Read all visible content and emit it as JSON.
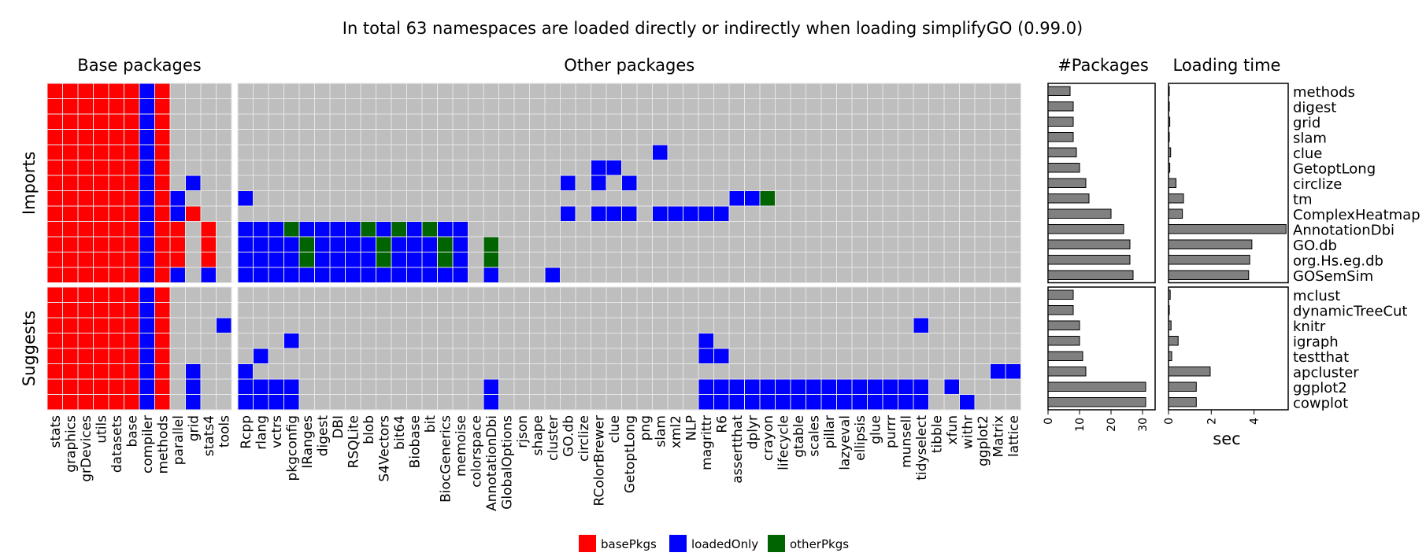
{
  "chart_data": [
    {
      "type": "heatmap",
      "title": "In total 63 namespaces are loaded directly or indirectly when loading simplifyGO (0.99.0)",
      "column_groups": [
        {
          "name": "Base packages",
          "columns": [
            "stats",
            "graphics",
            "grDevices",
            "utils",
            "datasets",
            "base",
            "compiler",
            "methods",
            "parallel",
            "grid",
            "stats4",
            "tools"
          ]
        },
        {
          "name": "Other packages",
          "columns": [
            "Rcpp",
            "rlang",
            "vctrs",
            "pkgconfig",
            "IRanges",
            "digest",
            "DBI",
            "RSQLite",
            "blob",
            "S4Vectors",
            "bit64",
            "Biobase",
            "bit",
            "BiocGenerics",
            "memoise",
            "colorspace",
            "AnnotationDbi",
            "GlobalOptions",
            "rjson",
            "shape",
            "cluster",
            "GO.db",
            "circlize",
            "RColorBrewer",
            "clue",
            "GetoptLong",
            "png",
            "slam",
            "xml2",
            "NLP",
            "magrittr",
            "R6",
            "assertthat",
            "dplyr",
            "crayon",
            "lifecycle",
            "gtable",
            "scales",
            "pillar",
            "lazyeval",
            "ellipsis",
            "glue",
            "purrr",
            "munsell",
            "tidyselect",
            "tibble",
            "xfun",
            "withr",
            "ggplot2",
            "Matrix",
            "lattice"
          ]
        }
      ],
      "row_groups": [
        {
          "name": "Imports",
          "rows": [
            "methods",
            "digest",
            "grid",
            "slam",
            "clue",
            "GetoptLong",
            "circlize",
            "tm",
            "ComplexHeatmap",
            "AnnotationDbi",
            "GO.db",
            "org.Hs.eg.db",
            "GOSemSim"
          ]
        },
        {
          "name": "Suggests",
          "rows": [
            "mclust",
            "dynamicTreeCut",
            "knitr",
            "igraph",
            "testthat",
            "apcluster",
            "ggplot2",
            "cowplot"
          ]
        }
      ],
      "cell_codes": {
        "0": "not loaded",
        "1": "basePkgs",
        "2": "loadedOnly",
        "3": "otherPkgs"
      },
      "cells": [
        "111111210000000000000000000000000000000000000000000000000000000",
        "111111210000000000000000000000000000000000000000000000000000000",
        "111111210000000000000000000000000000000000000000000000000000000",
        "111111210000000000000000000000000000000000000000000000000000000",
        "111111210000000000000000000000000000000200000000000000000000000",
        "111111210000000000000000000000000002200000000000000000000000000",
        "111111210200000000000000000000000202020000000000000000000000000",
        "111111212000200000000000000000000000000000002230000000000000000",
        "111111212100000000000000000000000202220222220000000000000000000",
        "111111211010222322223232322000000000000000000000000000000000000",
        "111111211010222232222322232030000000000000000000000000000000000",
        "111111211010222232222322232030000000000000000000000000000000000",
        "111111212020222222222222222020002000000000000000000000000000000",
        "111111210000000000000000000000000000000000000000000000000000000",
        "111111210000000000000000000000000000000000000000000000000000000",
        "111111210002000000000000000000000000000000000000000000002000000",
        "111111210000000200000000000000000000000000200000000000000000000",
        "111111210000020000000000000000000000000000220000000000000000000",
        "111111210200200000000000000000000000000000000000000000000000022",
        "111111210200222200000000000020000000000000222222222222222020000",
        "111111210200222200000000000020000000000000222222222222222002000"
      ],
      "legend": [
        {
          "label": "basePkgs",
          "color": "#ff0000"
        },
        {
          "label": "loadedOnly",
          "color": "#0000ff"
        },
        {
          "label": "otherPkgs",
          "color": "#006400"
        }
      ],
      "empty_color": "#bebebe"
    },
    {
      "type": "bar",
      "title": "#Packages",
      "categories": [
        "methods",
        "digest",
        "grid",
        "slam",
        "clue",
        "GetoptLong",
        "circlize",
        "tm",
        "ComplexHeatmap",
        "AnnotationDbi",
        "GO.db",
        "org.Hs.eg.db",
        "GOSemSim",
        "mclust",
        "dynamicTreeCut",
        "knitr",
        "igraph",
        "testthat",
        "apcluster",
        "ggplot2",
        "cowplot"
      ],
      "values": [
        7,
        8,
        8,
        8,
        9,
        10,
        12,
        13,
        20,
        24,
        26,
        26,
        27,
        8,
        8,
        10,
        10,
        11,
        12,
        31,
        31
      ],
      "xlim": [
        0,
        34
      ],
      "xticks": [
        0,
        10,
        20,
        30
      ],
      "bar_color": "#808080"
    },
    {
      "type": "bar",
      "title": "Loading time",
      "xlabel": "sec",
      "categories": [
        "methods",
        "digest",
        "grid",
        "slam",
        "clue",
        "GetoptLong",
        "circlize",
        "tm",
        "ComplexHeatmap",
        "AnnotationDbi",
        "GO.db",
        "org.Hs.eg.db",
        "GOSemSim",
        "mclust",
        "dynamicTreeCut",
        "knitr",
        "igraph",
        "testthat",
        "apcluster",
        "ggplot2",
        "cowplot"
      ],
      "values": [
        0.01,
        0.02,
        0.06,
        0.02,
        0.1,
        0.06,
        0.35,
        0.7,
        0.65,
        5.5,
        3.9,
        3.8,
        3.75,
        0.08,
        0.03,
        0.12,
        0.45,
        0.15,
        1.95,
        1.3,
        1.3
      ],
      "xlim": [
        0,
        5.6
      ],
      "xticks": [
        0,
        2,
        4
      ],
      "bar_color": "#808080"
    }
  ]
}
